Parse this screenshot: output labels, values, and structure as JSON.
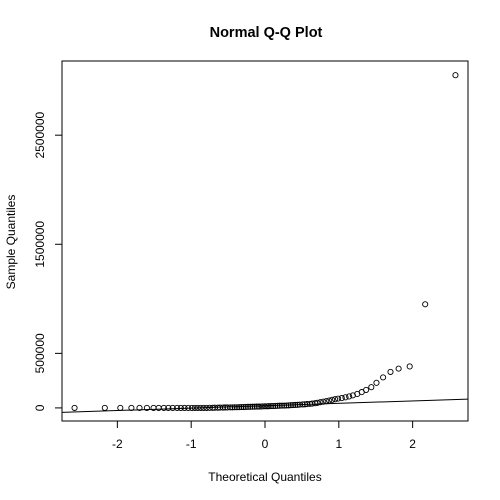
{
  "chart_data": {
    "type": "scatter",
    "title": "Normal Q-Q Plot",
    "xlabel": "Theoretical Quantiles",
    "ylabel": "Sample Quantiles",
    "xlim": [
      -2.75,
      2.75
    ],
    "ylim": [
      -120000,
      3180000
    ],
    "xticks": [
      -2,
      -1,
      0,
      1,
      2
    ],
    "xtick_labels": [
      "-2",
      "-1",
      "0",
      "1",
      "2"
    ],
    "yticks": [
      0,
      500000,
      1500000,
      2500000
    ],
    "ytick_labels": [
      "0",
      "500000",
      "1500000",
      "2500000"
    ],
    "grid": false,
    "legend": "none",
    "points": [
      [
        -2.58,
        0
      ],
      [
        -2.17,
        0
      ],
      [
        -1.96,
        0
      ],
      [
        -1.81,
        0
      ],
      [
        -1.7,
        0
      ],
      [
        -1.6,
        0
      ],
      [
        -1.51,
        0
      ],
      [
        -1.44,
        0
      ],
      [
        -1.37,
        0
      ],
      [
        -1.31,
        0
      ],
      [
        -1.25,
        0
      ],
      [
        -1.19,
        0
      ],
      [
        -1.14,
        0
      ],
      [
        -1.09,
        0
      ],
      [
        -1.04,
        0
      ],
      [
        -0.99,
        0
      ],
      [
        -0.95,
        0
      ],
      [
        -0.91,
        0
      ],
      [
        -0.87,
        0
      ],
      [
        -0.83,
        0
      ],
      [
        -0.79,
        0
      ],
      [
        -0.75,
        1000
      ],
      [
        -0.71,
        1000
      ],
      [
        -0.68,
        2000
      ],
      [
        -0.64,
        2000
      ],
      [
        -0.61,
        3000
      ],
      [
        -0.57,
        3000
      ],
      [
        -0.54,
        4000
      ],
      [
        -0.51,
        4000
      ],
      [
        -0.47,
        5000
      ],
      [
        -0.44,
        5000
      ],
      [
        -0.41,
        6000
      ],
      [
        -0.38,
        6000
      ],
      [
        -0.35,
        7000
      ],
      [
        -0.32,
        8000
      ],
      [
        -0.29,
        8000
      ],
      [
        -0.26,
        9000
      ],
      [
        -0.23,
        10000
      ],
      [
        -0.2,
        10000
      ],
      [
        -0.17,
        11000
      ],
      [
        -0.14,
        11000
      ],
      [
        -0.11,
        12000
      ],
      [
        -0.08,
        12000
      ],
      [
        -0.05,
        13000
      ],
      [
        -0.03,
        14000
      ],
      [
        0.0,
        15000
      ],
      [
        0.03,
        15000
      ],
      [
        0.05,
        16000
      ],
      [
        0.08,
        17000
      ],
      [
        0.11,
        17000
      ],
      [
        0.14,
        18000
      ],
      [
        0.17,
        19000
      ],
      [
        0.2,
        20000
      ],
      [
        0.23,
        21000
      ],
      [
        0.26,
        21000
      ],
      [
        0.29,
        22000
      ],
      [
        0.32,
        23000
      ],
      [
        0.35,
        25000
      ],
      [
        0.38,
        26000
      ],
      [
        0.41,
        27000
      ],
      [
        0.44,
        28000
      ],
      [
        0.47,
        30000
      ],
      [
        0.51,
        32000
      ],
      [
        0.54,
        33000
      ],
      [
        0.57,
        35000
      ],
      [
        0.61,
        37000
      ],
      [
        0.64,
        40000
      ],
      [
        0.68,
        43000
      ],
      [
        0.71,
        47000
      ],
      [
        0.75,
        52000
      ],
      [
        0.79,
        57000
      ],
      [
        0.83,
        62000
      ],
      [
        0.87,
        68000
      ],
      [
        0.91,
        74000
      ],
      [
        0.95,
        80000
      ],
      [
        0.99,
        85000
      ],
      [
        1.04,
        90000
      ],
      [
        1.09,
        97000
      ],
      [
        1.14,
        105000
      ],
      [
        1.19,
        115000
      ],
      [
        1.25,
        128000
      ],
      [
        1.31,
        145000
      ],
      [
        1.37,
        165000
      ],
      [
        1.44,
        190000
      ],
      [
        1.51,
        230000
      ],
      [
        1.6,
        280000
      ],
      [
        1.7,
        330000
      ],
      [
        1.81,
        360000
      ],
      [
        1.96,
        380000
      ],
      [
        2.17,
        950000
      ],
      [
        2.58,
        3050000
      ]
    ],
    "reference_line": {
      "intercept": 20000,
      "slope": 22000
    }
  }
}
